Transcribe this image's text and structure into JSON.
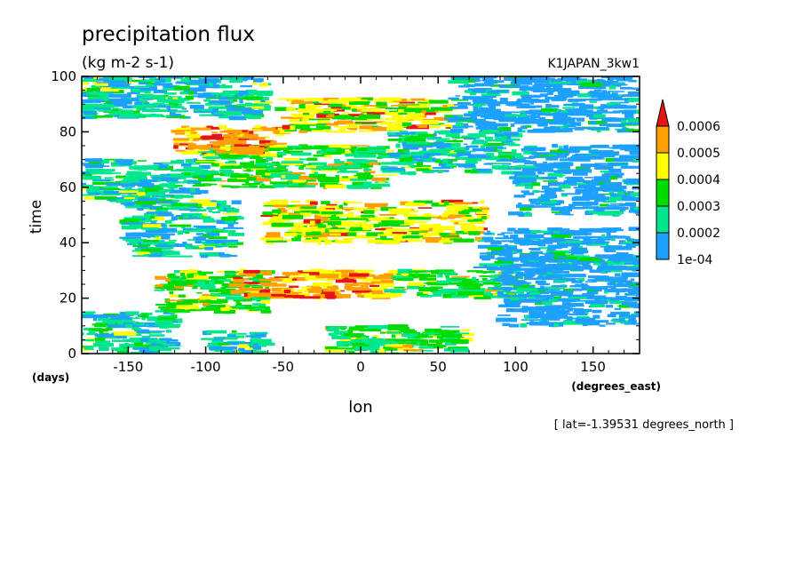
{
  "chart_data": {
    "type": "heatmap",
    "title": "precipitation flux",
    "units": "(kg m-2 s-1)",
    "dataset": "K1JAPAN_3kw1",
    "xlabel": "lon",
    "ylabel": "time",
    "x_units": "(degrees_east)",
    "y_units": "(days)",
    "annotation": "[ lat=-1.39531 degrees_north ]",
    "xlim": [
      -180,
      180
    ],
    "ylim": [
      0,
      100
    ],
    "x_ticks": [
      -150,
      -100,
      -50,
      0,
      50,
      100,
      150
    ],
    "x_tick_labels": [
      "-150",
      "-100",
      "-50",
      "0",
      "50",
      "100",
      "150"
    ],
    "y_ticks": [
      0,
      20,
      40,
      60,
      80,
      100
    ],
    "y_tick_labels": [
      "0",
      "20",
      "40",
      "60",
      "80",
      "100"
    ],
    "colorbar": {
      "levels": [
        0.0001,
        0.0002,
        0.0003,
        0.0004,
        0.0005,
        0.0006
      ],
      "level_labels": [
        "1e-04",
        "0.0002",
        "0.0003",
        "0.0004",
        "0.0005",
        "0.0006"
      ],
      "colors": [
        "#1ea0ff",
        "#00e68c",
        "#00dc00",
        "#ffff00",
        "#ffa000",
        "#e61414"
      ],
      "extend_max": true
    },
    "bands": [
      {
        "lon": [
          -180,
          -120
        ],
        "time": [
          0,
          15
        ],
        "level": 1
      },
      {
        "lon": [
          -130,
          -60
        ],
        "time": [
          15,
          30
        ],
        "level": 2
      },
      {
        "lon": [
          -80,
          20
        ],
        "time": [
          20,
          30
        ],
        "level": 4
      },
      {
        "lon": [
          20,
          100
        ],
        "time": [
          20,
          30
        ],
        "level": 2
      },
      {
        "lon": [
          90,
          180
        ],
        "time": [
          10,
          35
        ],
        "level": 0
      },
      {
        "lon": [
          -150,
          -80
        ],
        "time": [
          35,
          55
        ],
        "level": 1
      },
      {
        "lon": [
          -60,
          80
        ],
        "time": [
          40,
          55
        ],
        "level": 3
      },
      {
        "lon": [
          80,
          180
        ],
        "time": [
          30,
          45
        ],
        "level": 0
      },
      {
        "lon": [
          -180,
          -100
        ],
        "time": [
          55,
          70
        ],
        "level": 1
      },
      {
        "lon": [
          -100,
          20
        ],
        "time": [
          60,
          75
        ],
        "level": 2
      },
      {
        "lon": [
          20,
          100
        ],
        "time": [
          65,
          80
        ],
        "level": 1
      },
      {
        "lon": [
          100,
          180
        ],
        "time": [
          50,
          75
        ],
        "level": 0
      },
      {
        "lon": [
          -120,
          -50
        ],
        "time": [
          72,
          82
        ],
        "level": 4
      },
      {
        "lon": [
          -50,
          60
        ],
        "time": [
          80,
          92
        ],
        "level": 3
      },
      {
        "lon": [
          60,
          180
        ],
        "time": [
          80,
          100
        ],
        "level": 0
      },
      {
        "lon": [
          -180,
          -60
        ],
        "time": [
          85,
          100
        ],
        "level": 1
      },
      {
        "lon": [
          -20,
          70
        ],
        "time": [
          0,
          10
        ],
        "level": 2
      },
      {
        "lon": [
          -100,
          -60
        ],
        "time": [
          0,
          8
        ],
        "level": 1
      }
    ]
  }
}
